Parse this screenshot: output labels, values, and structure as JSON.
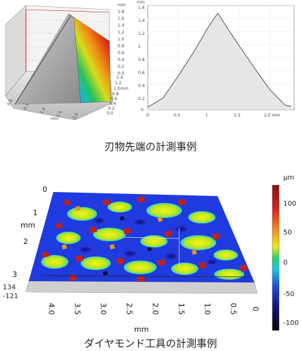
{
  "top_figure": {
    "view3d": {
      "z_unit": "mm",
      "z_ticks": [
        "1.8",
        "1.6",
        "1.4",
        "1.2",
        "1.0",
        "0.8",
        "0.6",
        "0.4",
        "0.2",
        "0.0"
      ],
      "x_unit": "mm",
      "x_ticks": [
        "0.0",
        "0.5",
        "1.0",
        "1.5",
        "2.0"
      ],
      "y_unit": "mm",
      "y_ticks": [
        "0.0",
        "0.2",
        "0.4",
        "0.6",
        "0.8",
        "1.0",
        "1.2",
        "1.4"
      ]
    },
    "profile": {
      "y_unit": "mm",
      "y_ticks": [
        "1.6",
        "1.4",
        "1.2",
        "1",
        "0.8",
        "0.6",
        "0.4",
        "0.2",
        "0"
      ],
      "x_ticks": [
        "0",
        "0.5",
        "1",
        "1.5",
        "2.0 mm"
      ]
    },
    "caption": "刃物先端の計測事例"
  },
  "bottom_figure": {
    "y_unit": "mm",
    "y_ticks": [
      "0",
      "1",
      "2",
      "3"
    ],
    "z_values": [
      "134",
      "-121"
    ],
    "x_ticks": [
      "4.0",
      "3.5",
      "3.0",
      "2.5",
      "2.0",
      "1.5",
      "1.0",
      "0.5",
      "0"
    ],
    "x_unit": "mm",
    "colorbar": {
      "unit": "μm",
      "ticks": [
        "100",
        "50",
        "0",
        "-50",
        "-100"
      ]
    },
    "caption": "ダイヤモンド工具の計測事例"
  },
  "chart_data": {
    "type": "area",
    "x": [
      0,
      0.25,
      0.5,
      0.75,
      1.0,
      1.1,
      1.15,
      1.3,
      1.5,
      1.75,
      2.0,
      2.25,
      2.35
    ],
    "y": [
      0.04,
      0.18,
      0.52,
      0.88,
      1.28,
      1.42,
      1.48,
      1.26,
      0.98,
      0.64,
      0.31,
      0.07,
      0.05
    ],
    "xlim": [
      0,
      2.4
    ],
    "ylim": [
      0,
      1.6
    ],
    "ylabel": "mm",
    "xlabel": "mm",
    "grid": true,
    "colors": {
      "fill": "#e6e6e6",
      "line": "#444444",
      "grid": "#e3e3e3"
    }
  }
}
